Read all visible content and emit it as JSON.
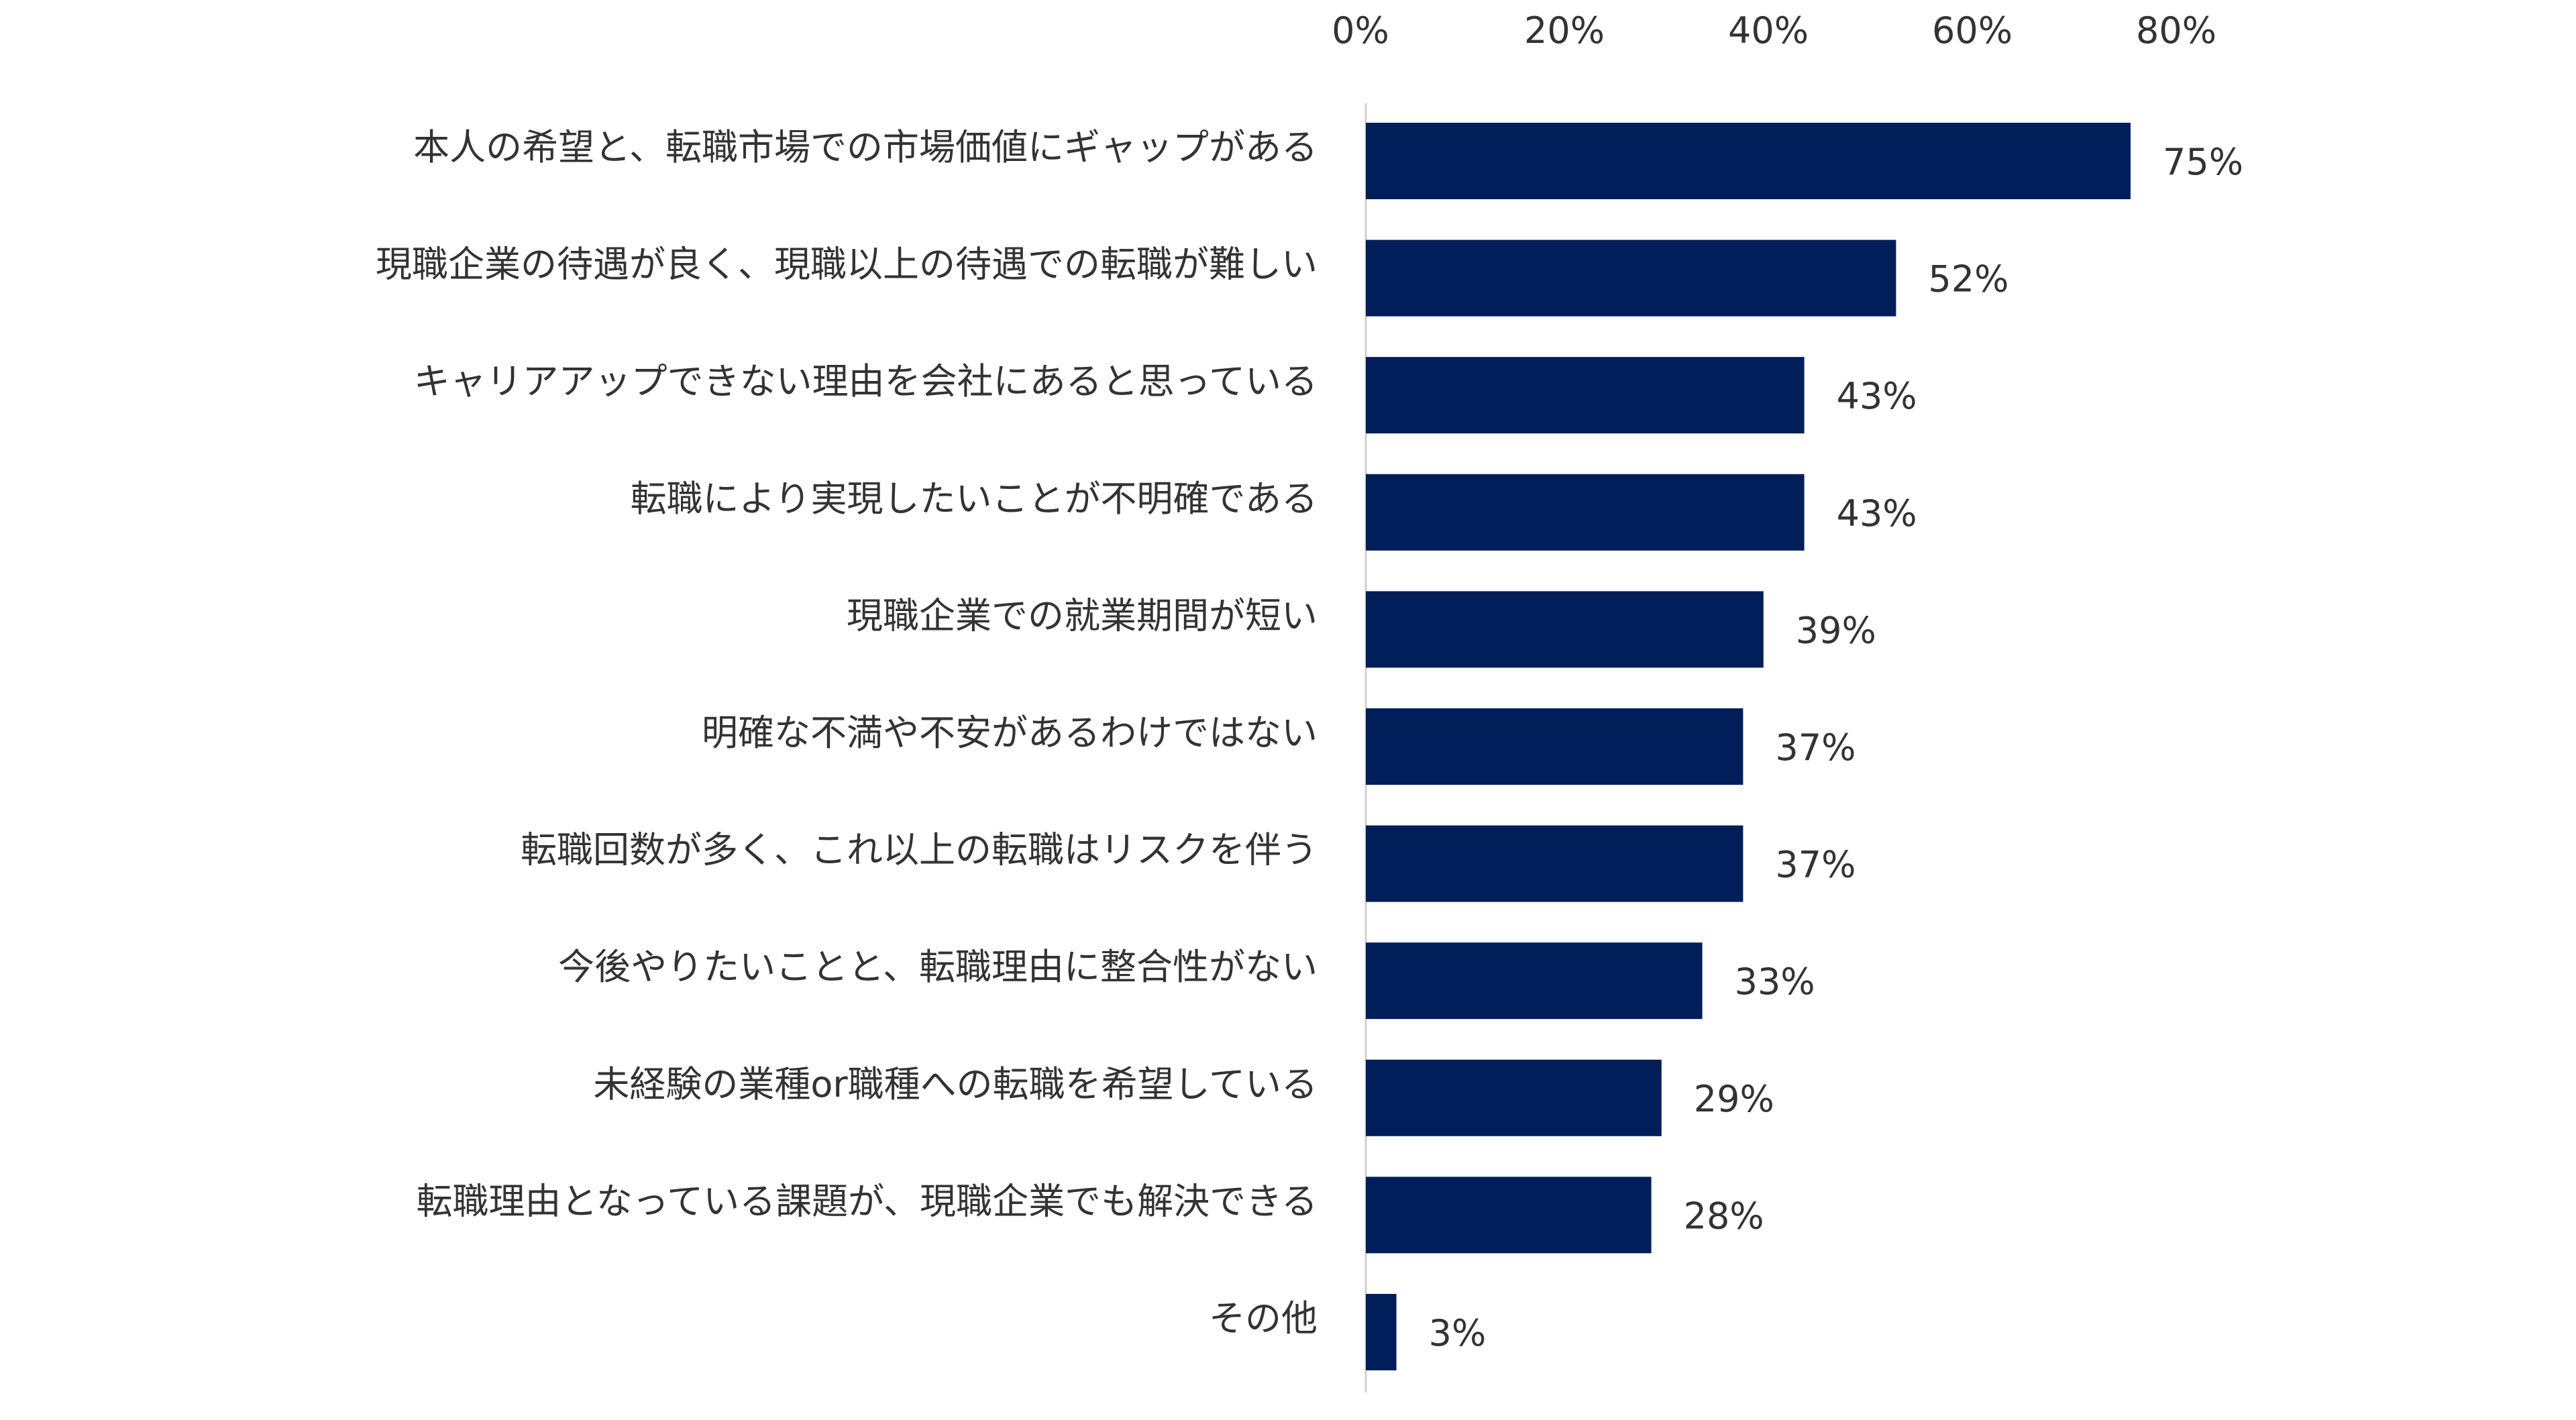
{
  "chart_data": {
    "type": "bar",
    "orientation": "horizontal",
    "title": "",
    "xlabel": "",
    "ylabel": "",
    "xlim": [
      0,
      80
    ],
    "x_ticks": [
      "0%",
      "20%",
      "40%",
      "60%",
      "80%"
    ],
    "x_tick_values": [
      0,
      20,
      40,
      60,
      80
    ],
    "tick_position": "top",
    "grid": false,
    "bar_color": "#001e5a",
    "categories": [
      "本人の希望と、転職市場での市場価値にギャップがある",
      "現職企業の待遇が良く、現職以上の待遇での転職が難しい",
      "キャリアアップできない理由を会社にあると思っている",
      "転職により実現したいことが不明確である",
      "現職企業での就業期間が短い",
      "明確な不満や不安があるわけではない",
      "転職回数が多く、これ以上の転職はリスクを伴う",
      "今後やりたいことと、転職理由に整合性がない",
      "未経験の業種or職種への転職を希望している",
      "転職理由となっている課題が、現職企業でも解決できる",
      "その他"
    ],
    "values": [
      75,
      52,
      43,
      43,
      39,
      37,
      37,
      33,
      29,
      28,
      3
    ],
    "value_labels": [
      "75%",
      "52%",
      "43%",
      "43%",
      "39%",
      "37%",
      "37%",
      "33%",
      "29%",
      "28%",
      "3%"
    ]
  }
}
